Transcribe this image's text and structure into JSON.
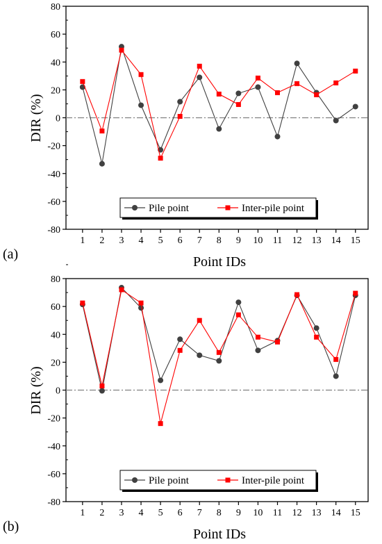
{
  "chart_data": [
    {
      "panel": "(a)",
      "type": "line",
      "xlabel": "Point IDs",
      "ylabel": "DIR (%)",
      "ylim": [
        -80,
        80
      ],
      "yticks": [
        -80,
        -60,
        -40,
        -20,
        0,
        20,
        40,
        60,
        80
      ],
      "x": [
        1,
        2,
        3,
        4,
        5,
        6,
        7,
        8,
        9,
        10,
        11,
        12,
        13,
        14,
        15
      ],
      "reference_line": 0,
      "legend_position": "bottom-center",
      "series": [
        {
          "name": "Pile point",
          "color": "#404040",
          "marker": "circle",
          "values": [
            22,
            -33,
            51,
            9,
            -23,
            11.5,
            29,
            -8,
            17.5,
            22,
            -13.5,
            39,
            18,
            -2,
            8
          ]
        },
        {
          "name": "Inter-pile point",
          "color": "#ff0000",
          "marker": "square",
          "values": [
            26,
            -9.5,
            48.5,
            31,
            -29,
            1,
            37,
            17,
            9.5,
            28.5,
            18,
            24.5,
            16.5,
            25,
            33.5
          ]
        }
      ]
    },
    {
      "panel": "(b)",
      "type": "line",
      "xlabel": "Point IDs",
      "ylabel": "DIR (%)",
      "ylim": [
        -80,
        80
      ],
      "yticks": [
        -80,
        -60,
        -40,
        -20,
        0,
        20,
        40,
        60,
        80
      ],
      "x": [
        1,
        2,
        3,
        4,
        5,
        6,
        7,
        8,
        9,
        10,
        11,
        12,
        13,
        14,
        15
      ],
      "reference_line": 0,
      "legend_position": "bottom-center",
      "series": [
        {
          "name": "Pile point",
          "color": "#404040",
          "marker": "circle",
          "values": [
            61.5,
            -0.5,
            73.5,
            59,
            7,
            36.5,
            25,
            21,
            63,
            28.5,
            35.5,
            68,
            44.5,
            10,
            68
          ]
        },
        {
          "name": "Inter-pile point",
          "color": "#ff0000",
          "marker": "square",
          "values": [
            62.5,
            3,
            72,
            62.5,
            -24,
            28.5,
            50,
            27,
            54,
            38,
            34.5,
            68.5,
            38,
            22,
            69.5
          ]
        }
      ]
    }
  ]
}
